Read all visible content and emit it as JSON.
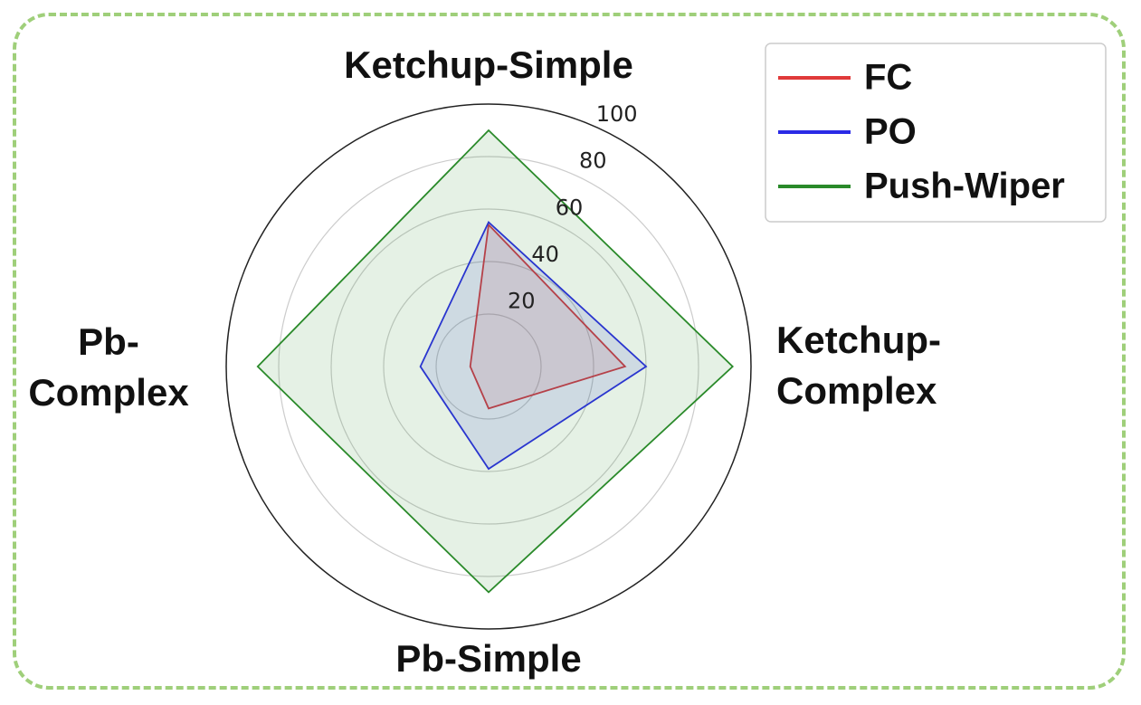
{
  "chart_data": {
    "type": "radar",
    "categories": [
      "Ketchup-Simple",
      "Ketchup-Complex",
      "Pb-Simple",
      "Pb-Complex"
    ],
    "series": [
      {
        "name": "FC",
        "color": "#e03a3a",
        "values": [
          54,
          52,
          16,
          7
        ]
      },
      {
        "name": "PO",
        "color": "#2a2ae6",
        "values": [
          55,
          60,
          39,
          26
        ]
      },
      {
        "name": "Push-Wiper",
        "color": "#2a8a2a",
        "values": [
          90,
          93,
          86,
          88
        ]
      }
    ],
    "ylim": [
      0,
      100
    ],
    "yticks": [
      20,
      40,
      60,
      80,
      100
    ],
    "grid": true,
    "legend": "upper right"
  }
}
